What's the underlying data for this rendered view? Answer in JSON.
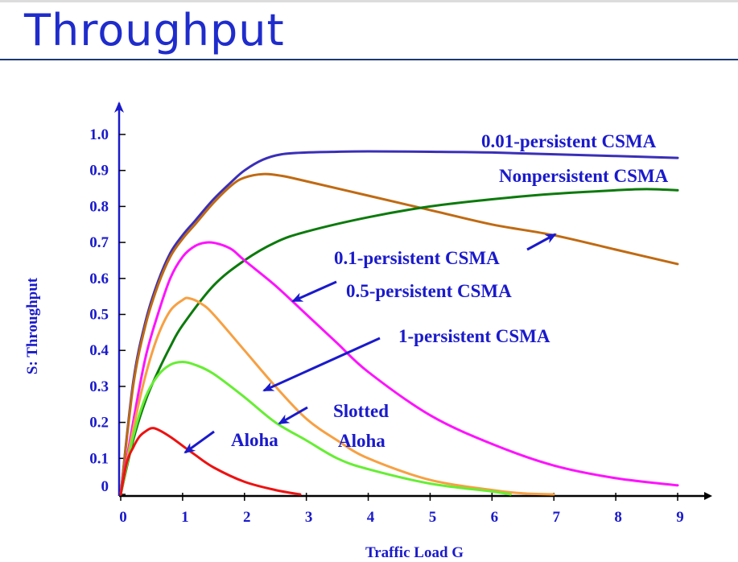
{
  "slide": {
    "title": "Throughput"
  },
  "chart_data": {
    "type": "line",
    "xlabel": "Traffic Load G",
    "ylabel": "S: Throughput",
    "xlim": [
      0,
      9
    ],
    "ylim": [
      0,
      1.0
    ],
    "xticks": [
      "0",
      "1",
      "2",
      "3",
      "4",
      "5",
      "6",
      "7",
      "8",
      "9"
    ],
    "yticks": [
      "0",
      "0.1",
      "0.2",
      "0.3",
      "0.4",
      "0.5",
      "0.6",
      "0.7",
      "0.8",
      "0.9",
      "1.0"
    ],
    "grid": false,
    "series": [
      {
        "name": "0.01-persistent CSMA",
        "color": "#3a2fb8",
        "x": [
          0,
          0.2,
          0.4,
          0.6,
          0.8,
          1.0,
          1.2,
          1.5,
          1.8,
          2.0,
          2.3,
          2.6,
          3.0,
          3.5,
          4.0,
          5.0,
          6.0,
          7.0,
          8.0,
          9.0
        ],
        "y": [
          0,
          0.31,
          0.48,
          0.59,
          0.67,
          0.72,
          0.76,
          0.82,
          0.87,
          0.9,
          0.93,
          0.945,
          0.95,
          0.952,
          0.953,
          0.952,
          0.95,
          0.945,
          0.94,
          0.935
        ]
      },
      {
        "name": "Nonpersistent CSMA",
        "color": "#c06a12",
        "x": [
          0,
          0.2,
          0.4,
          0.6,
          0.8,
          1.0,
          1.2,
          1.5,
          1.8,
          2.0,
          2.3,
          2.6,
          3.0,
          4.0,
          5.0,
          6.0,
          7.0,
          8.0,
          9.0
        ],
        "y": [
          0,
          0.3,
          0.47,
          0.58,
          0.66,
          0.71,
          0.75,
          0.81,
          0.86,
          0.88,
          0.89,
          0.885,
          0.87,
          0.83,
          0.79,
          0.75,
          0.72,
          0.68,
          0.64
        ]
      },
      {
        "name": "0.1-persistent CSMA",
        "color": "#0c7a0c",
        "x": [
          0,
          0.2,
          0.4,
          0.6,
          0.8,
          1.0,
          1.5,
          2.0,
          2.5,
          3.0,
          4.0,
          5.0,
          6.0,
          7.0,
          8.0,
          8.5,
          9.0
        ],
        "y": [
          0,
          0.15,
          0.26,
          0.34,
          0.41,
          0.47,
          0.58,
          0.65,
          0.7,
          0.73,
          0.77,
          0.8,
          0.82,
          0.835,
          0.845,
          0.848,
          0.845
        ]
      },
      {
        "name": "0.5-persistent CSMA",
        "color": "#ff12ff",
        "x": [
          0,
          0.2,
          0.4,
          0.6,
          0.8,
          1.0,
          1.2,
          1.4,
          1.6,
          1.8,
          2.0,
          2.5,
          3.0,
          3.5,
          4.0,
          5.0,
          6.0,
          7.0,
          8.0,
          9.0
        ],
        "y": [
          0,
          0.2,
          0.38,
          0.5,
          0.6,
          0.66,
          0.69,
          0.7,
          0.695,
          0.68,
          0.65,
          0.58,
          0.5,
          0.42,
          0.34,
          0.22,
          0.14,
          0.08,
          0.045,
          0.025
        ]
      },
      {
        "name": "1-persistent CSMA",
        "color": "#f7a042",
        "x": [
          0,
          0.2,
          0.4,
          0.6,
          0.8,
          1.0,
          1.1,
          1.3,
          1.5,
          2.0,
          2.5,
          3.0,
          3.5,
          4.0,
          5.0,
          6.0,
          6.5,
          7.0
        ],
        "y": [
          0,
          0.18,
          0.33,
          0.44,
          0.51,
          0.54,
          0.545,
          0.53,
          0.5,
          0.4,
          0.3,
          0.21,
          0.15,
          0.1,
          0.04,
          0.012,
          0.003,
          0
        ]
      },
      {
        "name": "Slotted Aloha",
        "color": "#66ee33",
        "x": [
          0,
          0.2,
          0.4,
          0.6,
          0.8,
          1.0,
          1.2,
          1.5,
          2.0,
          2.5,
          3.0,
          3.5,
          4.0,
          5.0,
          6.0,
          6.3
        ],
        "y": [
          0,
          0.16,
          0.27,
          0.33,
          0.36,
          0.368,
          0.36,
          0.335,
          0.27,
          0.2,
          0.15,
          0.1,
          0.07,
          0.03,
          0.008,
          0
        ]
      },
      {
        "name": "Aloha",
        "color": "#ee1111",
        "x": [
          0,
          0.1,
          0.2,
          0.3,
          0.4,
          0.5,
          0.6,
          0.8,
          1.0,
          1.2,
          1.5,
          2.0,
          2.5,
          2.9
        ],
        "y": [
          0,
          0.09,
          0.13,
          0.16,
          0.175,
          0.184,
          0.18,
          0.16,
          0.135,
          0.11,
          0.075,
          0.035,
          0.012,
          0
        ]
      }
    ],
    "annotations": [
      {
        "text": "0.01-persistent CSMA",
        "series": "0.01-persistent CSMA"
      },
      {
        "text": "Nonpersistent CSMA",
        "series": "Nonpersistent CSMA"
      },
      {
        "text": "0.1-persistent CSMA",
        "series": "0.1-persistent CSMA"
      },
      {
        "text": "0.5-persistent CSMA",
        "series": "0.5-persistent CSMA"
      },
      {
        "text": "1-persistent CSMA",
        "series": "1-persistent CSMA"
      },
      {
        "text": "Slotted",
        "series": "Slotted Aloha"
      },
      {
        "text": "Aloha",
        "series": "Slotted Aloha"
      },
      {
        "text": "Aloha",
        "series": "Aloha"
      }
    ],
    "arrow_color": "#1a1acc",
    "axis_color": "#000000"
  }
}
